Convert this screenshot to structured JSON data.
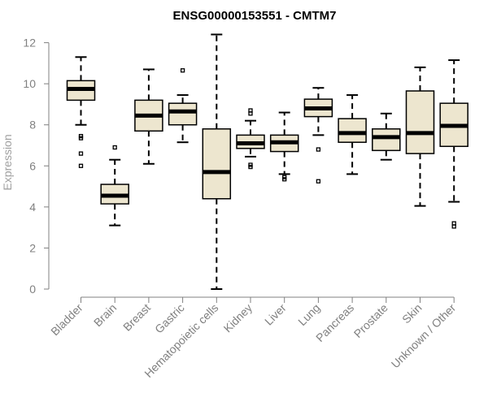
{
  "chart_data": {
    "type": "boxplot",
    "title": "ENSG00000153551 - CMTM7",
    "xlabel": "",
    "ylabel": "Expression",
    "ylim": [
      0,
      12.3
    ],
    "yticks": [
      0,
      2,
      4,
      6,
      8,
      10,
      12
    ],
    "grid": false,
    "legend": "none",
    "box_fill": "#ede6cf",
    "box_stroke": "#000000",
    "categories": [
      "Bladder",
      "Brain",
      "Breast",
      "Gastric",
      "Hematopoietic cells",
      "Kidney",
      "Liver",
      "Lung",
      "Pancreas",
      "Prostate",
      "Skin",
      "Unknown / Other"
    ],
    "boxes": [
      {
        "min": 8.0,
        "q1": 9.2,
        "median": 9.75,
        "q3": 10.15,
        "max": 11.3,
        "outliers": [
          7.45,
          7.35,
          6.6,
          6.0
        ]
      },
      {
        "min": 3.1,
        "q1": 4.15,
        "median": 4.55,
        "q3": 5.1,
        "max": 6.3,
        "outliers": [
          6.9
        ]
      },
      {
        "min": 6.1,
        "q1": 7.7,
        "median": 8.45,
        "q3": 9.2,
        "max": 10.7,
        "outliers": []
      },
      {
        "min": 7.15,
        "q1": 8.0,
        "median": 8.65,
        "q3": 9.05,
        "max": 9.45,
        "outliers": [
          10.65
        ]
      },
      {
        "min": 0.0,
        "q1": 4.4,
        "median": 5.7,
        "q3": 7.8,
        "max": 12.4,
        "outliers": []
      },
      {
        "min": 6.45,
        "q1": 6.85,
        "median": 7.1,
        "q3": 7.5,
        "max": 8.2,
        "outliers": [
          8.7,
          8.55,
          6.05,
          5.95
        ]
      },
      {
        "min": 5.6,
        "q1": 6.7,
        "median": 7.15,
        "q3": 7.5,
        "max": 8.6,
        "outliers": [
          5.45,
          5.35
        ]
      },
      {
        "min": 7.5,
        "q1": 8.4,
        "median": 8.8,
        "q3": 9.25,
        "max": 9.8,
        "outliers": [
          6.8,
          5.25
        ]
      },
      {
        "min": 5.6,
        "q1": 7.15,
        "median": 7.6,
        "q3": 8.3,
        "max": 9.45,
        "outliers": []
      },
      {
        "min": 6.3,
        "q1": 6.75,
        "median": 7.4,
        "q3": 7.8,
        "max": 8.55,
        "outliers": []
      },
      {
        "min": 4.05,
        "q1": 6.6,
        "median": 7.6,
        "q3": 9.65,
        "max": 10.8,
        "outliers": []
      },
      {
        "min": 4.25,
        "q1": 6.95,
        "median": 7.95,
        "q3": 9.05,
        "max": 11.15,
        "outliers": [
          3.2,
          3.05
        ]
      }
    ]
  }
}
